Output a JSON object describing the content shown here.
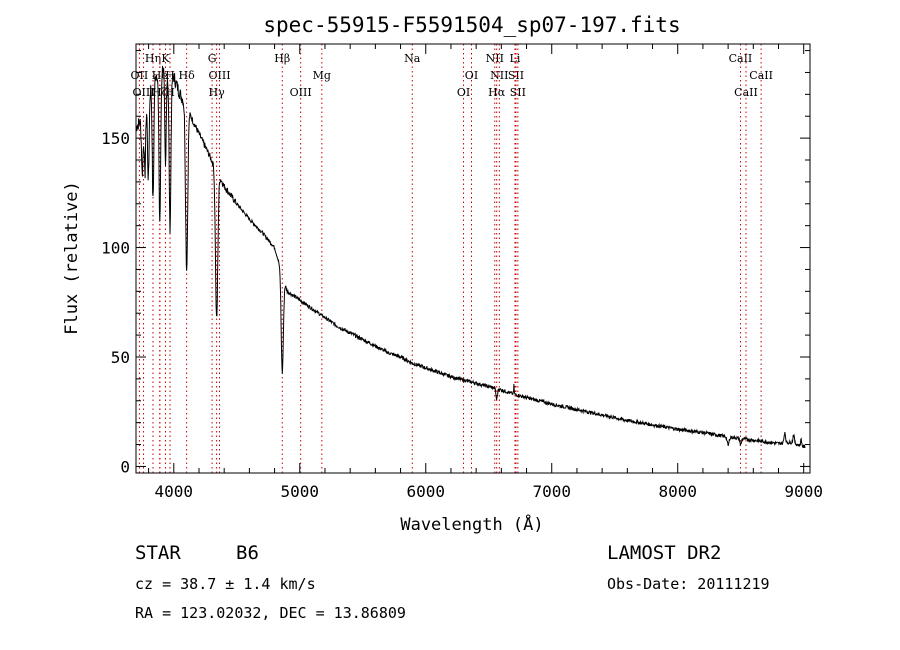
{
  "chart_data": {
    "type": "line",
    "title": "spec-55915-F5591504_sp07-197.fits",
    "xlabel": "Wavelength (Å)",
    "ylabel": "Flux (relative)",
    "xlim": [
      3700,
      9050
    ],
    "ylim": [
      -3,
      193
    ],
    "xticks": [
      4000,
      5000,
      6000,
      7000,
      8000,
      9000
    ],
    "yticks": [
      0,
      50,
      100,
      150
    ],
    "grid": false,
    "line_color": "#000000",
    "marker_color": "#cc0000",
    "continuum": [
      [
        3700,
        155
      ],
      [
        3760,
        160
      ],
      [
        3800,
        172
      ],
      [
        3850,
        178
      ],
      [
        3900,
        183
      ],
      [
        3950,
        180
      ],
      [
        4000,
        178
      ],
      [
        4050,
        170
      ],
      [
        4100,
        165
      ],
      [
        4150,
        158
      ],
      [
        4200,
        152
      ],
      [
        4250,
        146
      ],
      [
        4300,
        140
      ],
      [
        4350,
        134
      ],
      [
        4400,
        128
      ],
      [
        4500,
        120
      ],
      [
        4600,
        113
      ],
      [
        4700,
        107
      ],
      [
        4800,
        100
      ],
      [
        4900,
        80
      ],
      [
        5000,
        76
      ],
      [
        5100,
        72
      ],
      [
        5200,
        68
      ],
      [
        5300,
        64
      ],
      [
        5400,
        61
      ],
      [
        5500,
        58
      ],
      [
        5600,
        55
      ],
      [
        5700,
        52
      ],
      [
        5800,
        50
      ],
      [
        5900,
        47
      ],
      [
        6000,
        45
      ],
      [
        6100,
        43
      ],
      [
        6200,
        41
      ],
      [
        6300,
        39.5
      ],
      [
        6400,
        38
      ],
      [
        6500,
        36.5
      ],
      [
        6600,
        35
      ],
      [
        6700,
        33
      ],
      [
        6800,
        31.5
      ],
      [
        6900,
        30
      ],
      [
        7000,
        28.5
      ],
      [
        7200,
        26
      ],
      [
        7400,
        23.5
      ],
      [
        7600,
        21
      ],
      [
        7800,
        19
      ],
      [
        8000,
        17
      ],
      [
        8200,
        15.5
      ],
      [
        8400,
        13.5
      ],
      [
        8600,
        12
      ],
      [
        8800,
        10.5
      ],
      [
        8900,
        11
      ],
      [
        9000,
        9
      ]
    ],
    "absorption": [
      [
        3750,
        25,
        9
      ],
      [
        3771,
        30,
        8
      ],
      [
        3798,
        40,
        9
      ],
      [
        3835,
        55,
        9
      ],
      [
        3889,
        70,
        10
      ],
      [
        3934,
        45,
        8
      ],
      [
        3970,
        70,
        10
      ],
      [
        4102,
        75,
        12
      ],
      [
        4340,
        68,
        13
      ],
      [
        4861,
        45,
        12
      ],
      [
        6563,
        5,
        8
      ],
      [
        8400,
        4,
        10
      ],
      [
        8500,
        3,
        8
      ]
    ],
    "emission": [
      [
        6700,
        4,
        3
      ],
      [
        8850,
        5,
        8
      ],
      [
        8920,
        4,
        8
      ],
      [
        8980,
        3,
        6
      ]
    ],
    "line_markers": [
      {
        "label": "Hη",
        "wavelength": 3835,
        "row": 1
      },
      {
        "label": "K",
        "wavelength": 3934,
        "row": 1
      },
      {
        "label": "OII",
        "wavelength": 3727,
        "row": 2
      },
      {
        "label": "He",
        "wavelength": 3889,
        "row": 2
      },
      {
        "label": "H",
        "wavelength": 3970,
        "row": 2
      },
      {
        "label": "OIII",
        "wavelength": 3760,
        "row": 3
      },
      {
        "label": "Hζ",
        "wavelength": 3889,
        "row": 3
      },
      {
        "label": "H",
        "wavelength": 3970,
        "row": 3
      },
      {
        "label": "Hδ",
        "wavelength": 4102,
        "row": 2
      },
      {
        "label": "G",
        "wavelength": 4304,
        "row": 1
      },
      {
        "label": "OIII",
        "wavelength": 4363,
        "row": 2
      },
      {
        "label": "Hγ",
        "wavelength": 4340,
        "row": 3
      },
      {
        "label": "Hβ",
        "wavelength": 4861,
        "row": 1
      },
      {
        "label": "OIII",
        "wavelength": 5007,
        "row": 3
      },
      {
        "label": "Mg",
        "wavelength": 5175,
        "row": 2
      },
      {
        "label": "Na",
        "wavelength": 5893,
        "row": 1
      },
      {
        "label": "OI",
        "wavelength": 6300,
        "row": 3
      },
      {
        "label": "OI",
        "wavelength": 6363,
        "row": 2
      },
      {
        "label": "NII",
        "wavelength": 6548,
        "row": 1
      },
      {
        "label": "Li",
        "wavelength": 6708,
        "row": 1
      },
      {
        "label": "NII",
        "wavelength": 6584,
        "row": 2
      },
      {
        "label": "SII",
        "wavelength": 6716,
        "row": 2
      },
      {
        "label": "Hα",
        "wavelength": 6563,
        "row": 3
      },
      {
        "label": "SII",
        "wavelength": 6731,
        "row": 3
      },
      {
        "label": "CaII",
        "wavelength": 8498,
        "row": 1
      },
      {
        "label": "CaII",
        "wavelength": 8662,
        "row": 2
      },
      {
        "label": "CaII",
        "wavelength": 8542,
        "row": 3
      }
    ]
  },
  "info": {
    "class_label": "STAR",
    "subclass": "B6",
    "survey": "LAMOST DR2",
    "cz": "cz = 38.7 ± 1.4 km/s",
    "obs_date": "Obs-Date: 20111219",
    "coords": "RA = 123.02032, DEC =  13.86809"
  }
}
